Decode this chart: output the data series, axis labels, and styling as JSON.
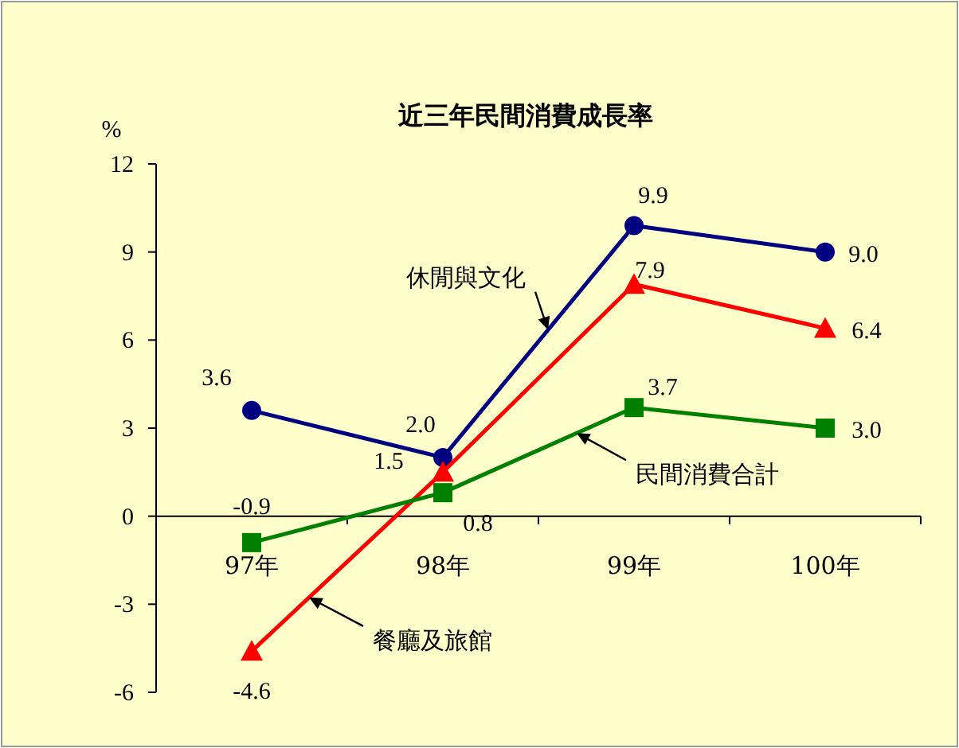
{
  "chart_data": {
    "type": "line",
    "title": "近三年民間消費成長率",
    "ylabel": "%",
    "categories": [
      "97年",
      "98年",
      "99年",
      "100年"
    ],
    "ylim": [
      -6,
      12
    ],
    "yticks": [
      -6,
      -3,
      0,
      3,
      6,
      9,
      12
    ],
    "grid": false,
    "legend": false,
    "line_style": "solid",
    "series": [
      {
        "name": "休閒與文化",
        "color": "#000080",
        "marker": "circle",
        "values": [
          3.6,
          2.0,
          9.9,
          9.0
        ],
        "value_labels": [
          "3.6",
          "2.0",
          "9.9",
          "9.0"
        ]
      },
      {
        "name": "餐廳及旅館",
        "color": "#ff0000",
        "marker": "triangle",
        "values": [
          -4.6,
          1.5,
          7.9,
          6.4
        ],
        "value_labels": [
          "-4.6",
          "1.5",
          "7.9",
          "6.4"
        ]
      },
      {
        "name": "民間消費合計",
        "color": "#008000",
        "marker": "square",
        "values": [
          -0.9,
          0.8,
          3.7,
          3.0
        ],
        "value_labels": [
          "-0.9",
          "0.8",
          "3.7",
          "3.0"
        ]
      }
    ]
  }
}
